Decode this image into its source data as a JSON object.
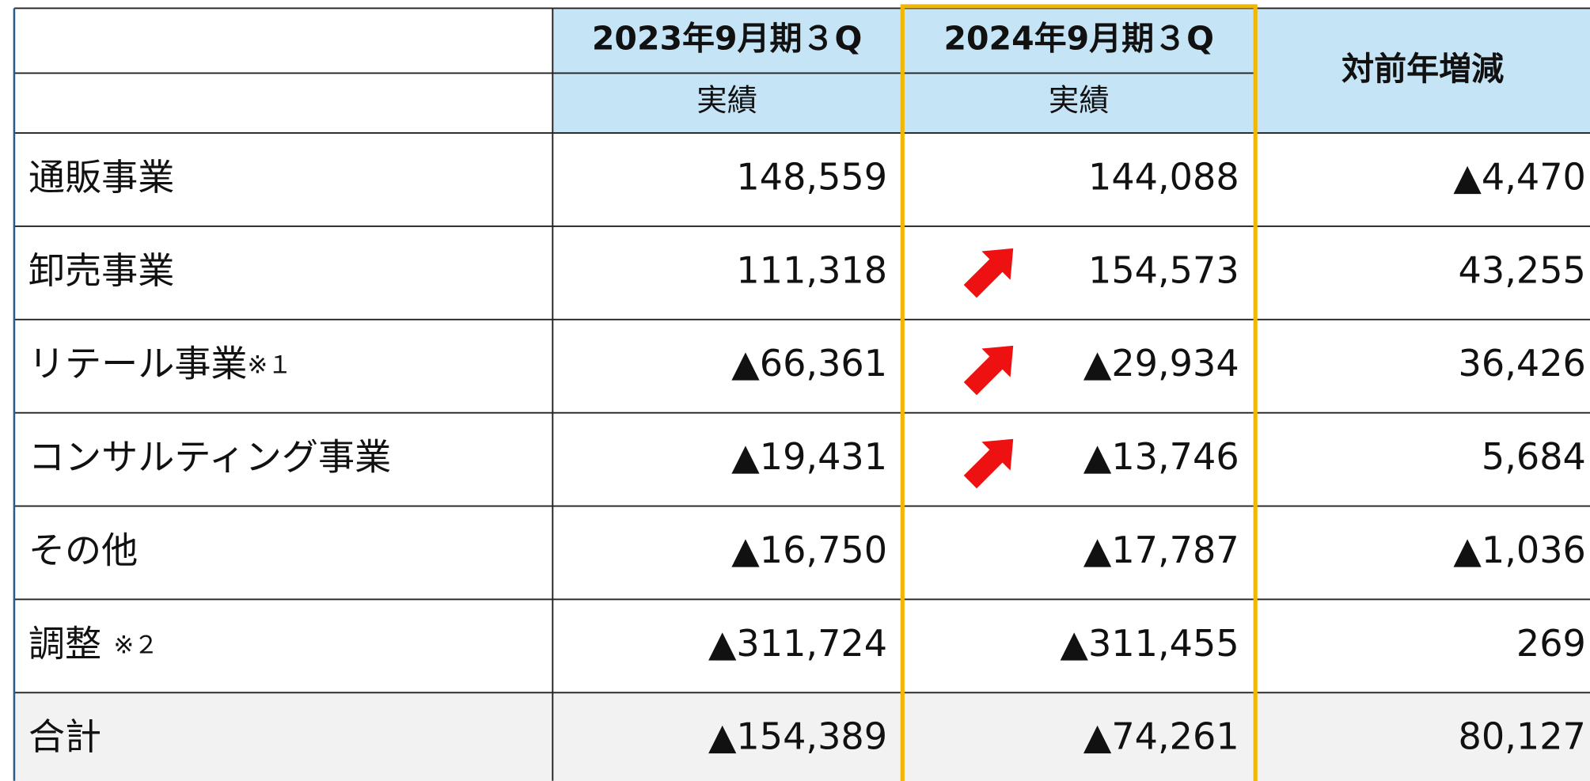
{
  "header": {
    "columns": [
      {
        "title": "2023年9月期３Q",
        "sub": "実績"
      },
      {
        "title": "2024年9月期３Q",
        "sub": "実績"
      },
      {
        "title": "対前年増減"
      }
    ]
  },
  "table": {
    "rows": [
      {
        "label": "通販事業",
        "values": [
          "148,559",
          "144,088",
          "▲4,470"
        ]
      },
      {
        "label": "卸売事業",
        "values": [
          "111,318",
          "154,573",
          "43,255"
        ]
      },
      {
        "label": "リテール事業",
        "note": "※１",
        "values": [
          "▲66,361",
          "▲29,934",
          "36,426"
        ]
      },
      {
        "label": "コンサルティング事業",
        "values": [
          "▲19,431",
          "▲13,746",
          "5,684"
        ]
      },
      {
        "label": "その他",
        "values": [
          "▲16,750",
          "▲17,787",
          "▲1,036"
        ]
      },
      {
        "label": "調整",
        "note": "※２",
        "values": [
          "▲311,724",
          "▲311,455",
          "269"
        ]
      },
      {
        "label": "合計",
        "values": [
          "▲154,389",
          "▲74,261",
          "80,127"
        ]
      }
    ]
  }
}
